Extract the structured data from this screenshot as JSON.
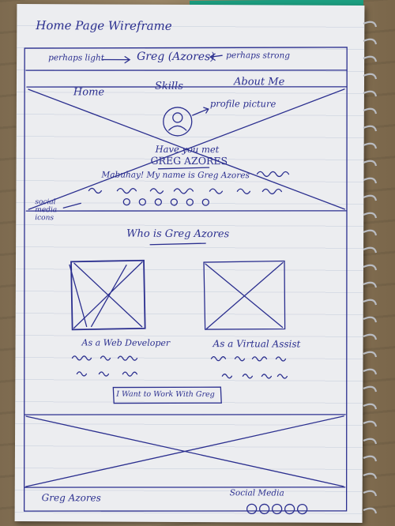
{
  "page_title": "Home Page Wireframe",
  "header": {
    "left_note": "perhaps light",
    "brand": "Greg (Azores)",
    "right_note": "perhaps strong"
  },
  "nav": {
    "items": [
      "Home",
      "Skills",
      "About Me"
    ]
  },
  "hero": {
    "profile_note": "profile picture",
    "line1": "Have you met",
    "name": "GREG AZORES",
    "intro": "Mabuhay! My name is Greg Azores",
    "social_note": "social media icons"
  },
  "about": {
    "heading": "Who is Greg Azores",
    "cards": [
      {
        "label": "As a Web Developer"
      },
      {
        "label": "As a Virtual Assist"
      }
    ],
    "cta": "I Want to Work With Greg"
  },
  "footer": {
    "name": "Greg Azores",
    "social_label": "Social Media"
  },
  "colors": {
    "ink": "#2b2f8f",
    "paper": "#ecedf0",
    "accent": "#1c9e80"
  }
}
